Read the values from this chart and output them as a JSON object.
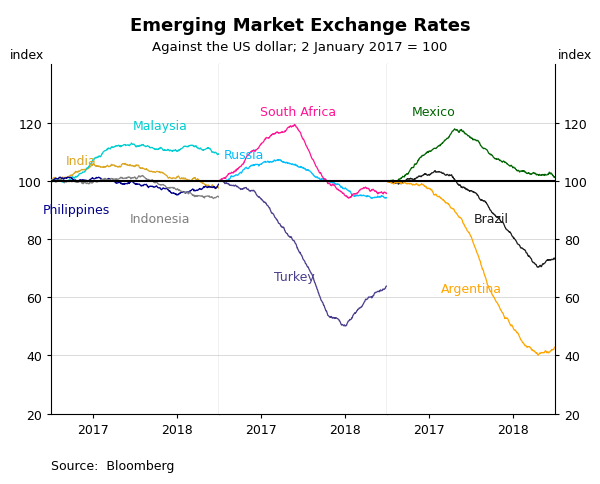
{
  "title": "Emerging Market Exchange Rates",
  "subtitle": "Against the US dollar; 2 January 2017 = 100",
  "ylabel_left": "index",
  "ylabel_right": "index",
  "source": "Source:  Bloomberg",
  "ylim": [
    20,
    140
  ],
  "yticks": [
    20,
    40,
    60,
    80,
    100,
    120
  ],
  "series": {
    "India": {
      "color": "#DAA520",
      "panel": 0
    },
    "Malaysia": {
      "color": "#00CED1",
      "panel": 0
    },
    "Philippines": {
      "color": "#00008B",
      "panel": 0
    },
    "Indonesia": {
      "color": "#808080",
      "panel": 0
    },
    "Russia": {
      "color": "#00BFFF",
      "panel": 1
    },
    "South Africa": {
      "color": "#FF1493",
      "panel": 1
    },
    "Turkey": {
      "color": "#483D8B",
      "panel": 1
    },
    "Mexico": {
      "color": "#006400",
      "panel": 2
    },
    "Brazil": {
      "color": "#1C1C1C",
      "panel": 2
    },
    "Argentina": {
      "color": "#FFA500",
      "panel": 2
    }
  },
  "n_points": 500
}
